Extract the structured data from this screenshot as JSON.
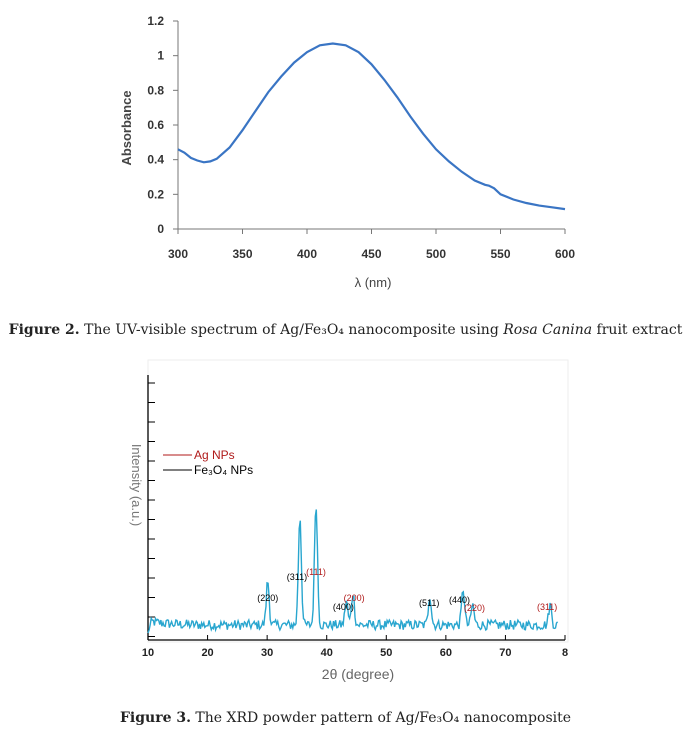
{
  "chart_data": [
    {
      "type": "line",
      "xlabel": "λ (nm)",
      "ylabel": "Absorbance",
      "xlim": [
        300,
        600
      ],
      "ylim": [
        0,
        1.2
      ],
      "xticks": [
        "300",
        "350",
        "400",
        "450",
        "500",
        "550",
        "600"
      ],
      "yticks": [
        "0",
        "0.2",
        "0.4",
        "0.6",
        "0.8",
        "1",
        "1.2"
      ],
      "grid": false,
      "color": "#3a75c4",
      "series": [
        {
          "x": [
            300,
            305,
            310,
            315,
            320,
            325,
            330,
            340,
            350,
            360,
            370,
            380,
            390,
            400,
            410,
            420,
            430,
            440,
            450,
            460,
            470,
            480,
            490,
            500,
            510,
            520,
            530,
            538,
            541,
            545,
            550,
            560,
            570,
            580,
            590,
            600
          ],
          "y": [
            0.46,
            0.44,
            0.41,
            0.395,
            0.385,
            0.39,
            0.405,
            0.47,
            0.57,
            0.68,
            0.79,
            0.88,
            0.96,
            1.02,
            1.06,
            1.07,
            1.06,
            1.02,
            0.95,
            0.86,
            0.76,
            0.65,
            0.55,
            0.46,
            0.39,
            0.33,
            0.28,
            0.255,
            0.25,
            0.235,
            0.2,
            0.17,
            0.15,
            0.135,
            0.125,
            0.115
          ]
        }
      ]
    },
    {
      "type": "line",
      "xlabel": "2θ (degree)",
      "ylabel": "Intensity (a.u.)",
      "xlim": [
        10,
        80
      ],
      "xticks": [
        "10",
        "20",
        "30",
        "40",
        "50",
        "60",
        "70",
        "8"
      ],
      "grid": false,
      "color": "#29a6cf",
      "legend": {
        "position": "top-left",
        "entries": [
          {
            "label": "Ag NPs",
            "color": "#b01a1a"
          },
          {
            "label": "Fe₃O₄ NPs",
            "color": "#000000"
          }
        ]
      },
      "peaks": [
        {
          "x": 30.1,
          "h": 0.22
        },
        {
          "x": 35.5,
          "h": 0.55
        },
        {
          "x": 38.2,
          "h": 0.62
        },
        {
          "x": 43.3,
          "h": 0.12
        },
        {
          "x": 44.4,
          "h": 0.16
        },
        {
          "x": 57.3,
          "h": 0.15
        },
        {
          "x": 62.9,
          "h": 0.18
        },
        {
          "x": 64.5,
          "h": 0.1
        },
        {
          "x": 77.5,
          "h": 0.1
        }
      ],
      "peak_labels": [
        {
          "text": "(220)",
          "x": 30.1,
          "color": "#000000"
        },
        {
          "text": "(311)",
          "x": 35.0,
          "color": "#000000"
        },
        {
          "text": "(111)",
          "x": 38.2,
          "color": "#b01a1a"
        },
        {
          "text": "(400)",
          "x": 42.8,
          "color": "#000000"
        },
        {
          "text": "(200)",
          "x": 44.6,
          "color": "#b01a1a"
        },
        {
          "text": "(511)",
          "x": 57.2,
          "color": "#000000"
        },
        {
          "text": "(440)",
          "x": 62.3,
          "color": "#000000"
        },
        {
          "text": "(220)",
          "x": 64.8,
          "color": "#b01a1a"
        },
        {
          "text": "(311)",
          "x": 77.0,
          "color": "#b01a1a"
        }
      ]
    }
  ],
  "captions": {
    "fig2": {
      "label": "Figure 2.",
      "pre": " The UV-visible spectrum of Ag/Fe₃O₄ nanocomposite using ",
      "italic": "Rosa Canina",
      "post": " fruit extract"
    },
    "fig3": {
      "label": "Figure 3.",
      "text": " The XRD powder pattern of Ag/Fe₃O₄ nanocomposite"
    }
  }
}
